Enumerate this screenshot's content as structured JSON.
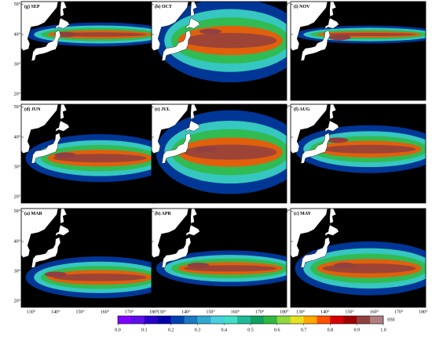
{
  "panels": [
    {
      "label": "(g) SEP"
    },
    {
      "label": "(h) OCT"
    },
    {
      "label": "(i) NOV"
    },
    {
      "label": "(d) JUN"
    },
    {
      "label": "(e) JUL"
    },
    {
      "label": "(f) AUG"
    },
    {
      "label": "(a) MAR"
    },
    {
      "label": "(b) APR"
    },
    {
      "label": "(c) MAY"
    }
  ],
  "axes": {
    "xlim": [
      126,
      181
    ],
    "ylim": [
      18,
      51
    ],
    "xticks": [
      {
        "value": 130,
        "label": "130°"
      },
      {
        "value": 140,
        "label": "140°"
      },
      {
        "value": 150,
        "label": "150°"
      },
      {
        "value": 160,
        "label": "160°"
      },
      {
        "value": 170,
        "label": "170°"
      },
      {
        "value": 180,
        "label": "180°"
      }
    ],
    "yticks": [
      {
        "value": 20,
        "label": "20°"
      },
      {
        "value": 30,
        "label": "30°"
      },
      {
        "value": 40,
        "label": "40°"
      },
      {
        "value": 50,
        "label": "50°"
      }
    ]
  },
  "colorbar": {
    "title": "HSI",
    "lim": [
      0,
      1
    ],
    "ticks": [
      {
        "value": 0,
        "label": "0.0"
      },
      0.1,
      0.2,
      0.3,
      0.4,
      0.5,
      0.6,
      0.7,
      0.8,
      0.9,
      {
        "value": 1,
        "label": "1.0"
      }
    ],
    "colors": [
      "#8000ff",
      "#5a10e8",
      "#2a00c8",
      "#0000a8",
      "#0040b0",
      "#1a78c0",
      "#30a8d0",
      "#48d0e0",
      "#40e0c8",
      "#20b898",
      "#10a060",
      "#30b840",
      "#90d840",
      "#e8e020",
      "#ffa800",
      "#ff5000",
      "#d80000",
      "#a00000",
      "#904040",
      "#b08080"
    ]
  }
}
